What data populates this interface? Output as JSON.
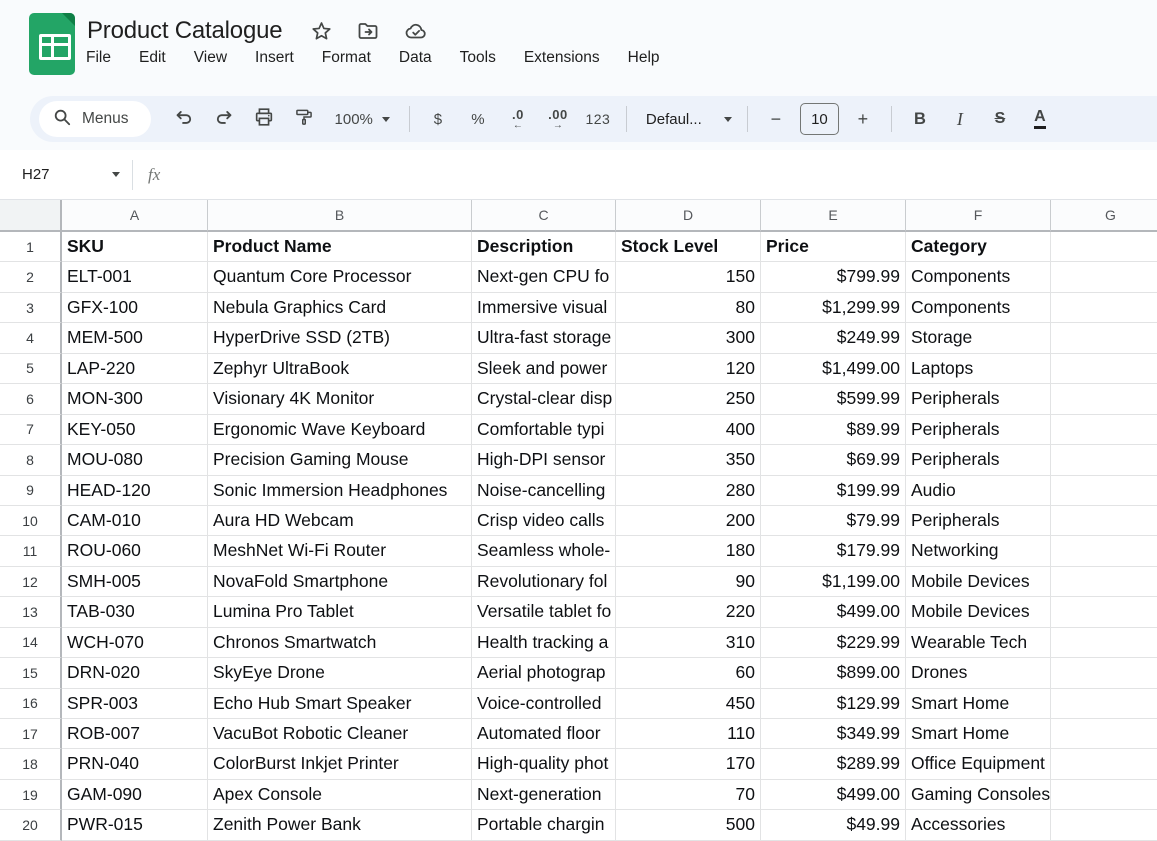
{
  "header": {
    "title": "Product Catalogue",
    "menus": [
      "File",
      "Edit",
      "View",
      "Insert",
      "Format",
      "Data",
      "Tools",
      "Extensions",
      "Help"
    ]
  },
  "icons": {
    "star": "☆",
    "decrease_decimal_arrow": "←",
    "increase_decimal_arrow": "→",
    "star_icon_name": "star-icon",
    "move_folder_icon_name": "move-folder-icon",
    "cloud_saved_icon_name": "cloud-check-icon",
    "search_icon_name": "search-icon",
    "undo_icon_name": "undo-icon",
    "redo_icon_name": "redo-icon",
    "print_icon_name": "print-icon",
    "paint_format_icon_name": "paint-format-icon",
    "fx_icon_name": "function-icon"
  },
  "toolbar": {
    "search_label": "Menus",
    "zoom_value": "100%",
    "currency_label": "$",
    "percent_label": "%",
    "decrease_decimal_label": ".0",
    "increase_decimal_label": ".00",
    "more_formats_label": "123",
    "font_family_value": "Defaul...",
    "decrease_font_size_label": "−",
    "font_size_value": "10",
    "increase_font_size_label": "+",
    "bold_label": "B",
    "italic_label": "I",
    "strikethrough_label": "S",
    "text_color_label": "A"
  },
  "formula_bar": {
    "name_box_value": "H27",
    "fx_label": "fx",
    "formula_value": ""
  },
  "grid": {
    "column_letters": [
      "A",
      "B",
      "C",
      "D",
      "E",
      "F",
      "G"
    ],
    "rows": [
      {
        "n": "1",
        "bold": true,
        "cells": [
          "SKU",
          "Product Name",
          "Description",
          "Stock Level",
          "Price",
          "Category",
          ""
        ]
      },
      {
        "n": "2",
        "cells": [
          "ELT-001",
          "Quantum Core Processor",
          "Next-gen CPU fo",
          "150",
          "$799.99",
          "Components",
          ""
        ]
      },
      {
        "n": "3",
        "cells": [
          "GFX-100",
          "Nebula Graphics Card",
          "Immersive visual",
          "80",
          "$1,299.99",
          "Components",
          ""
        ]
      },
      {
        "n": "4",
        "cells": [
          "MEM-500",
          "HyperDrive SSD (2TB)",
          "Ultra-fast storage",
          "300",
          "$249.99",
          "Storage",
          ""
        ]
      },
      {
        "n": "5",
        "cells": [
          "LAP-220",
          "Zephyr UltraBook",
          "Sleek and power",
          "120",
          "$1,499.00",
          "Laptops",
          ""
        ]
      },
      {
        "n": "6",
        "cells": [
          "MON-300",
          "Visionary 4K Monitor",
          "Crystal-clear disp",
          "250",
          "$599.99",
          "Peripherals",
          ""
        ]
      },
      {
        "n": "7",
        "cells": [
          "KEY-050",
          "Ergonomic Wave Keyboard",
          "Comfortable typi",
          "400",
          "$89.99",
          "Peripherals",
          ""
        ]
      },
      {
        "n": "8",
        "cells": [
          "MOU-080",
          "Precision Gaming Mouse",
          "High-DPI sensor",
          "350",
          "$69.99",
          "Peripherals",
          ""
        ]
      },
      {
        "n": "9",
        "cells": [
          "HEAD-120",
          "Sonic Immersion Headphones",
          "Noise-cancelling",
          "280",
          "$199.99",
          "Audio",
          ""
        ]
      },
      {
        "n": "10",
        "cells": [
          "CAM-010",
          "Aura HD Webcam",
          "Crisp video calls",
          "200",
          "$79.99",
          "Peripherals",
          ""
        ]
      },
      {
        "n": "11",
        "cells": [
          "ROU-060",
          "MeshNet Wi-Fi Router",
          "Seamless whole-",
          "180",
          "$179.99",
          "Networking",
          ""
        ]
      },
      {
        "n": "12",
        "cells": [
          "SMH-005",
          "NovaFold Smartphone",
          "Revolutionary fol",
          "90",
          "$1,199.00",
          "Mobile Devices",
          ""
        ]
      },
      {
        "n": "13",
        "cells": [
          "TAB-030",
          "Lumina Pro Tablet",
          "Versatile tablet fo",
          "220",
          "$499.00",
          "Mobile Devices",
          ""
        ]
      },
      {
        "n": "14",
        "cells": [
          "WCH-070",
          "Chronos Smartwatch",
          "Health tracking a",
          "310",
          "$229.99",
          "Wearable Tech",
          ""
        ]
      },
      {
        "n": "15",
        "cells": [
          "DRN-020",
          "SkyEye Drone",
          "Aerial photograp",
          "60",
          "$899.00",
          "Drones",
          ""
        ]
      },
      {
        "n": "16",
        "cells": [
          "SPR-003",
          "Echo Hub Smart Speaker",
          "Voice-controlled",
          "450",
          "$129.99",
          "Smart Home",
          ""
        ]
      },
      {
        "n": "17",
        "cells": [
          "ROB-007",
          "VacuBot Robotic Cleaner",
          "Automated floor",
          "110",
          "$349.99",
          "Smart Home",
          ""
        ]
      },
      {
        "n": "18",
        "cells": [
          "PRN-040",
          "ColorBurst Inkjet Printer",
          "High-quality phot",
          "170",
          "$289.99",
          "Office Equipment",
          ""
        ]
      },
      {
        "n": "19",
        "cells": [
          "GAM-090",
          "Apex Console",
          "Next-generation",
          "70",
          "$499.00",
          "Gaming Consoles",
          ""
        ]
      },
      {
        "n": "20",
        "cells": [
          "PWR-015",
          "Zenith Power Bank",
          "Portable chargin",
          "500",
          "$49.99",
          "Accessories",
          ""
        ]
      }
    ]
  }
}
